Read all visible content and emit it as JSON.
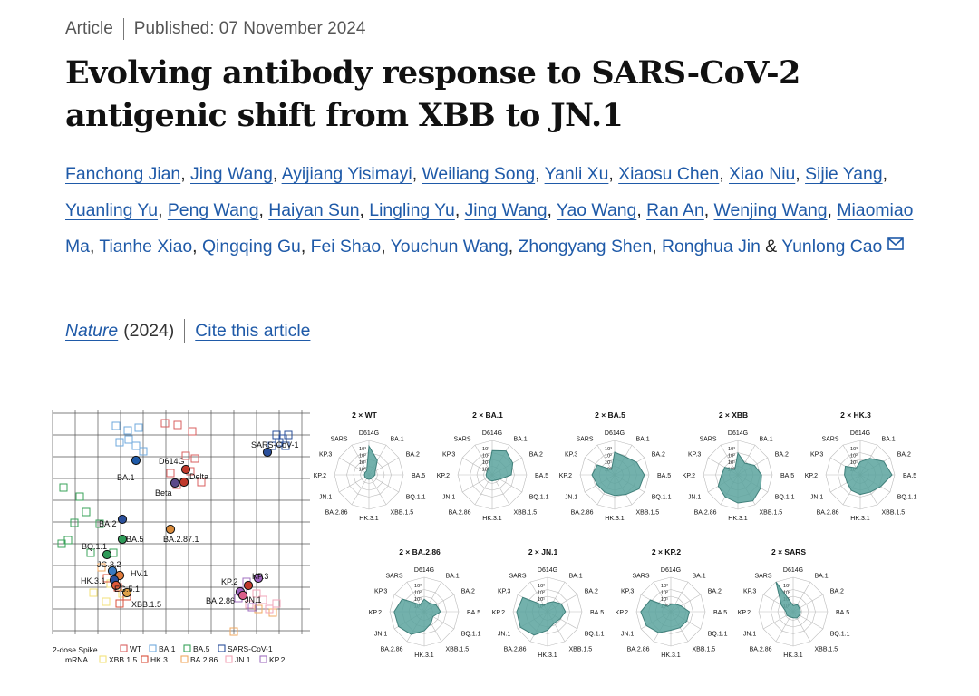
{
  "header": {
    "article_type": "Article",
    "published": "Published: 07 November 2024",
    "title": "Evolving antibody response to SARS-CoV-2 antigenic shift from XBB to JN.1"
  },
  "authors": [
    "Fanchong Jian",
    "Jing Wang",
    "Ayijiang Yisimayi",
    "Weiliang Song",
    "Yanli Xu",
    "Xiaosu Chen",
    "Xiao Niu",
    "Sijie Yang",
    "Yuanling Yu",
    "Peng Wang",
    "Haiyan Sun",
    "Lingling Yu",
    "Jing Wang",
    "Yao Wang",
    "Ran An",
    "Wenjing Wang",
    "Miaomiao Ma",
    "Tianhe Xiao",
    "Qingqing Gu",
    "Fei Shao",
    "Youchun Wang",
    "Zhongyang Shen",
    "Ronghua Jin",
    "Yunlong Cao"
  ],
  "authors_and": "&",
  "citation": {
    "journal": "Nature",
    "year": "(2024)",
    "cite_link": "Cite this article"
  },
  "figure": {
    "map": {
      "labels": [
        {
          "text": "SARS-CoV-1",
          "side": "left"
        },
        {
          "text": "D614G",
          "side": "left"
        },
        {
          "text": "Delta",
          "side": "right"
        },
        {
          "text": "BA.1",
          "side": "left"
        },
        {
          "text": "Beta",
          "side": "left"
        },
        {
          "text": "BA.2",
          "side": "left"
        },
        {
          "text": "BA.2.87.1",
          "side": "right"
        },
        {
          "text": "BA.5",
          "side": "right"
        },
        {
          "text": "BQ.1.1",
          "side": "left"
        },
        {
          "text": "JG.3.2",
          "side": "left"
        },
        {
          "text": "HV.1",
          "side": "right"
        },
        {
          "text": "HK.3.1",
          "side": "left"
        },
        {
          "text": "EG.5.1",
          "side": "right"
        },
        {
          "text": "XBB.1.5",
          "side": "right"
        },
        {
          "text": "KP.2",
          "side": "left"
        },
        {
          "text": "KP.3",
          "side": "right"
        },
        {
          "text": "BA.2.86",
          "side": "left"
        },
        {
          "text": "JN.1",
          "side": "right"
        }
      ],
      "legend_title": [
        "2-dose Spike",
        "mRNA"
      ],
      "legend": [
        {
          "label": "WT",
          "color": "#d95f5f"
        },
        {
          "label": "BA.1",
          "color": "#6fa8dc"
        },
        {
          "label": "BA.5",
          "color": "#3aa35a"
        },
        {
          "label": "SARS-CoV-1",
          "color": "#2a4f9a"
        },
        {
          "label": "XBB.1.5",
          "color": "#f3e27a"
        },
        {
          "label": "HK.3",
          "color": "#d94f3a"
        },
        {
          "label": "BA.2.86",
          "color": "#f0a860"
        },
        {
          "label": "JN.1",
          "color": "#f2a6b8"
        },
        {
          "label": "KP.2",
          "color": "#a070c0"
        }
      ]
    },
    "radar_axes": [
      "D614G",
      "BA.1",
      "BA.2",
      "BA.5",
      "BQ.1.1",
      "XBB.1.5",
      "HK.3.1",
      "BA.2.86",
      "JN.1",
      "KP.2",
      "KP.3",
      "SARS"
    ],
    "radar_ring_labels": [
      "10³",
      "10²",
      "10¹",
      "10°"
    ],
    "radar_ring_values": [
      1000,
      100,
      10,
      1
    ],
    "radar_scale": "log10",
    "radar_fill": "#5aa39e",
    "radars": [
      {
        "title": "2 × WT",
        "values": [
          950,
          45,
          4,
          3,
          2,
          2,
          2,
          2,
          2,
          2,
          2,
          2
        ]
      },
      {
        "title": "2 × BA.1",
        "values": [
          300,
          700,
          260,
          80,
          6,
          3,
          3,
          3,
          3,
          3,
          3,
          4
        ]
      },
      {
        "title": "2 × BA.5",
        "values": [
          200,
          130,
          400,
          1200,
          800,
          200,
          120,
          100,
          100,
          200,
          100,
          3
        ]
      },
      {
        "title": "2 × XBB",
        "values": [
          160,
          20,
          80,
          260,
          500,
          1300,
          800,
          400,
          200,
          40,
          30,
          3
        ]
      },
      {
        "title": "2 × HK.3",
        "values": [
          18,
          80,
          600,
          2000,
          250,
          100,
          90,
          60,
          30,
          35,
          50,
          5
        ]
      },
      {
        "title": "2 × BA.2.86",
        "values": [
          15,
          8,
          20,
          40,
          8,
          20,
          80,
          500,
          1200,
          1300,
          400,
          5
        ]
      },
      {
        "title": "2 × JN.1",
        "values": [
          6,
          12,
          35,
          60,
          25,
          18,
          70,
          600,
          1800,
          1600,
          900,
          4
        ]
      },
      {
        "title": "2 × KP.2",
        "values": [
          4,
          6,
          12,
          70,
          70,
          70,
          70,
          300,
          800,
          1300,
          250,
          3
        ]
      },
      {
        "title": "2 × SARS",
        "values": [
          3,
          5,
          4,
          4,
          4,
          4,
          3,
          3,
          4,
          4,
          20,
          4000
        ]
      }
    ]
  }
}
